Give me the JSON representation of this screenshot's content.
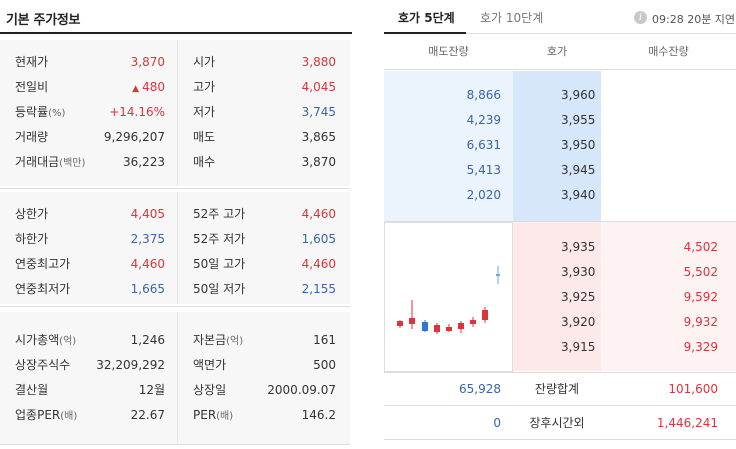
{
  "basic": {
    "title": "기본 주가정보",
    "rows1": [
      {
        "l1": "현재가",
        "v1": "3,870",
        "c1": "red",
        "l2": "시가",
        "v2": "3,880",
        "c2": "red"
      },
      {
        "l1": "전일비",
        "v1": "480",
        "c1": "red",
        "l2": "고가",
        "v2": "4,045",
        "c2": "red"
      },
      {
        "l1": "등락률",
        "l1s": "(%)",
        "v1": "+14.16%",
        "c1": "red",
        "l2": "저가",
        "v2": "3,745",
        "c2": "blue"
      },
      {
        "l1": "거래량",
        "v1": "9,296,207",
        "c1": "dark",
        "l2": "매도",
        "v2": "3,865",
        "c2": "dark"
      },
      {
        "l1": "거래대금",
        "l1s": "(백만)",
        "v1": "36,223",
        "c1": "dark",
        "l2": "매수",
        "v2": "3,870",
        "c2": "dark"
      }
    ],
    "rows2": [
      {
        "l1": "상한가",
        "v1": "4,405",
        "c1": "red",
        "l2": "52주 고가",
        "v2": "4,460",
        "c2": "red"
      },
      {
        "l1": "하한가",
        "v1": "2,375",
        "c1": "blue",
        "l2": "52주 저가",
        "v2": "1,605",
        "c2": "blue"
      },
      {
        "l1": "연중최고가",
        "v1": "4,460",
        "c1": "red",
        "l2": "50일 고가",
        "v2": "4,460",
        "c2": "red"
      },
      {
        "l1": "연중최저가",
        "v1": "1,665",
        "c1": "blue",
        "l2": "50일 저가",
        "v2": "2,155",
        "c2": "blue"
      }
    ],
    "rows3": [
      {
        "l1": "시가총액",
        "l1s": "(억)",
        "v1": "1,246",
        "c1": "dark",
        "l2": "자본금",
        "l2s": "(억)",
        "v2": "161",
        "c2": "dark"
      },
      {
        "l1": "상장주식수",
        "v1": "32,209,292",
        "c1": "dark",
        "l2": "액면가",
        "v2": "500",
        "c2": "dark"
      },
      {
        "l1": "결산월",
        "v1": "12월",
        "c1": "dark",
        "l2": "상장일",
        "v2": "2000.09.07",
        "c2": "dark"
      },
      {
        "l1": "업종PER",
        "l1s": "(배)",
        "v1": "22.67",
        "c1": "dark",
        "l2": "PER",
        "l2s": "(배)",
        "v2": "146.2",
        "c2": "dark"
      }
    ],
    "change_arrow": "▲"
  },
  "orderbook": {
    "tabs": [
      "호가 5단계",
      "호가 10단계"
    ],
    "info_icon": "i",
    "delay_text": "09:28 20분 지연",
    "headers": [
      "매도잔량",
      "호가",
      "매수잔량"
    ],
    "asks": [
      {
        "vol": "8,866",
        "price": "3,960"
      },
      {
        "vol": "4,239",
        "price": "3,955"
      },
      {
        "vol": "6,631",
        "price": "3,950"
      },
      {
        "vol": "5,413",
        "price": "3,945"
      },
      {
        "vol": "2,020",
        "price": "3,940"
      }
    ],
    "bids": [
      {
        "price": "3,935",
        "vol": "4,502"
      },
      {
        "price": "3,930",
        "vol": "5,502"
      },
      {
        "price": "3,925",
        "vol": "9,592"
      },
      {
        "price": "3,920",
        "vol": "9,932"
      },
      {
        "price": "3,915",
        "vol": "9,329"
      }
    ],
    "total_row": {
      "left": "65,928",
      "label": "잔량합계",
      "right": "101,600"
    },
    "after_row": {
      "left": "0",
      "label": "장후시간외",
      "right": "1,446,241"
    }
  },
  "colors": {
    "up": "#e0323b",
    "down": "#3a64ad"
  },
  "chart_data": {
    "type": "candlestick",
    "candles": [
      {
        "dir": "up"
      },
      {
        "dir": "up"
      },
      {
        "dir": "down"
      },
      {
        "dir": "up"
      },
      {
        "dir": "up"
      },
      {
        "dir": "up"
      },
      {
        "dir": "up"
      },
      {
        "dir": "up"
      },
      {
        "dir": "current"
      }
    ]
  }
}
